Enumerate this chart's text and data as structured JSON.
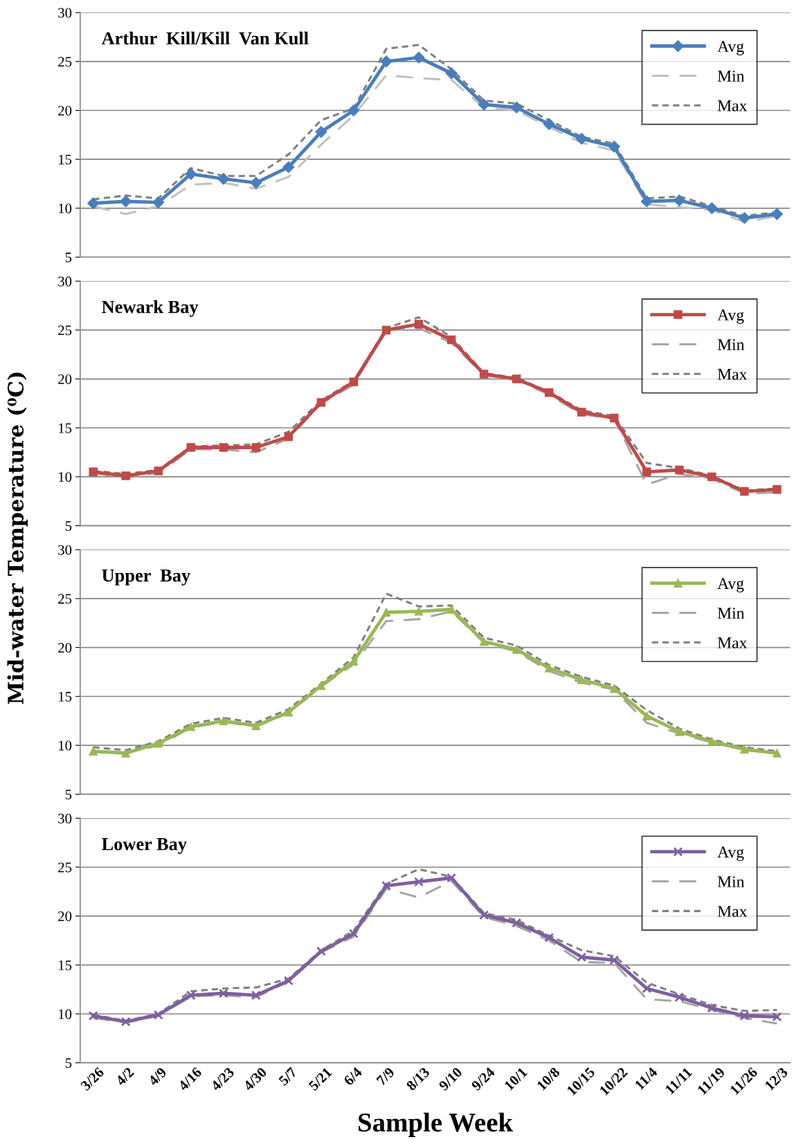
{
  "chart_data": [
    {
      "type": "line",
      "title": "Arthur  Kill/Kill  Van Kull",
      "categories": [
        null,
        null,
        null,
        null,
        null,
        null,
        null,
        null,
        null,
        null,
        null,
        null,
        null,
        null,
        null,
        null,
        null,
        null,
        null,
        null,
        null,
        null
      ],
      "ylim": [
        5,
        30
      ],
      "yticks": [
        5,
        10,
        15,
        20,
        25,
        30
      ],
      "grid": "y",
      "legend": "top right",
      "tick_labels": "y",
      "series": [
        {
          "name": "Avg",
          "color": "#4a7ebb",
          "marker": "diamond",
          "line_style": "solid",
          "values": [
            10.5,
            10.7,
            10.6,
            13.5,
            13.0,
            12.6,
            14.2,
            17.8,
            20.0,
            25.0,
            25.4,
            23.8,
            20.6,
            20.3,
            18.6,
            17.1,
            16.3,
            10.7,
            10.8,
            10.0,
            9.0,
            9.4
          ]
        },
        {
          "name": "Min",
          "color": "#c0c0c0",
          "marker": "none",
          "line_style": "dashed",
          "values": [
            10.2,
            9.4,
            10.2,
            12.4,
            12.6,
            12.0,
            13.2,
            16.5,
            19.5,
            23.6,
            23.3,
            23.1,
            20.3,
            20.0,
            18.3,
            16.7,
            15.9,
            10.4,
            10.1,
            9.8,
            8.6,
            9.2
          ]
        },
        {
          "name": "Max",
          "color": "#808080",
          "marker": "none",
          "line_style": "dotted",
          "values": [
            10.9,
            11.3,
            11.0,
            14.1,
            13.3,
            13.3,
            15.5,
            19.0,
            20.2,
            26.3,
            26.7,
            24.2,
            21.0,
            20.7,
            19.0,
            17.3,
            16.6,
            11.0,
            11.2,
            10.2,
            9.2,
            9.6
          ]
        }
      ]
    },
    {
      "type": "line",
      "title": "Newark Bay",
      "ylabel": "Mid-water Temperature (⁰C)",
      "categories": [
        null,
        null,
        null,
        null,
        null,
        null,
        null,
        null,
        null,
        null,
        null,
        null,
        null,
        null,
        null,
        null,
        null,
        null,
        null,
        null,
        null,
        null
      ],
      "ylim": [
        5,
        30
      ],
      "yticks": [
        5,
        10,
        15,
        20,
        25,
        30
      ],
      "grid": "y",
      "legend": "top right",
      "tick_labels": "y",
      "series": [
        {
          "name": "Avg",
          "color": "#be4b48",
          "marker": "square",
          "line_style": "solid",
          "values": [
            10.5,
            10.1,
            10.6,
            13.0,
            13.0,
            13.0,
            14.1,
            17.6,
            19.7,
            25.0,
            25.6,
            24.0,
            20.5,
            20.0,
            18.6,
            16.6,
            16.0,
            10.5,
            10.7,
            10.0,
            8.5,
            8.7
          ]
        },
        {
          "name": "Min",
          "color": "#a6a6a6",
          "marker": "none",
          "line_style": "dashed",
          "values": [
            10.4,
            9.9,
            10.4,
            12.8,
            12.8,
            12.5,
            13.9,
            17.5,
            19.4,
            25.0,
            25.2,
            23.7,
            20.4,
            19.9,
            18.4,
            16.4,
            15.9,
            9.2,
            10.3,
            9.8,
            8.3,
            8.4
          ]
        },
        {
          "name": "Max",
          "color": "#808080",
          "marker": "none",
          "line_style": "dotted",
          "values": [
            10.6,
            10.3,
            10.7,
            13.1,
            13.2,
            13.3,
            14.6,
            17.8,
            19.8,
            25.2,
            26.3,
            24.3,
            20.6,
            20.1,
            18.7,
            16.8,
            16.2,
            11.4,
            10.9,
            10.1,
            8.6,
            8.8
          ]
        }
      ]
    },
    {
      "type": "line",
      "title": "Upper  Bay",
      "categories": [
        null,
        null,
        null,
        null,
        null,
        null,
        null,
        null,
        null,
        null,
        null,
        null,
        null,
        null,
        null,
        null,
        null,
        null,
        null,
        null,
        null,
        null
      ],
      "ylim": [
        5,
        30
      ],
      "yticks": [
        5,
        10,
        15,
        20,
        25,
        30
      ],
      "grid": "y",
      "legend": "top right",
      "tick_labels": "y",
      "series": [
        {
          "name": "Avg",
          "color": "#98b954",
          "marker": "triangle",
          "line_style": "solid",
          "values": [
            9.4,
            9.2,
            10.2,
            11.9,
            12.5,
            12.0,
            13.4,
            16.1,
            18.6,
            23.6,
            23.7,
            23.9,
            20.6,
            19.8,
            17.9,
            16.7,
            15.8,
            13.0,
            11.4,
            10.4,
            9.6,
            9.2
          ]
        },
        {
          "name": "Min",
          "color": "#a6a6a6",
          "marker": "none",
          "line_style": "dashed",
          "values": [
            9.3,
            9.2,
            10.0,
            11.8,
            12.4,
            11.9,
            13.3,
            16.0,
            18.3,
            22.7,
            22.9,
            23.7,
            20.5,
            19.6,
            17.6,
            16.4,
            15.7,
            12.3,
            11.2,
            10.3,
            9.5,
            9.2
          ]
        },
        {
          "name": "Max",
          "color": "#808080",
          "marker": "none",
          "line_style": "dotted",
          "values": [
            9.8,
            9.5,
            10.4,
            12.2,
            12.8,
            12.3,
            13.7,
            16.3,
            19.0,
            25.5,
            24.2,
            24.3,
            21.0,
            20.2,
            18.2,
            17.0,
            16.1,
            13.6,
            11.7,
            10.6,
            9.8,
            9.4
          ]
        }
      ]
    },
    {
      "type": "line",
      "title": "Lower Bay",
      "xlabel": "Sample Week",
      "categories": [
        "3/26",
        "4/2",
        "4/9",
        "4/16",
        "4/23",
        "4/30",
        "5/7",
        "5/21",
        "6/4",
        "7/9",
        "8/13",
        "9/10",
        "9/24",
        "10/1",
        "10/8",
        "10/15",
        "10/22",
        "11/4",
        "11/11",
        "11/19",
        "11/26",
        "12/3"
      ],
      "ylim": [
        5,
        30
      ],
      "yticks": [
        5,
        10,
        15,
        20,
        25,
        30
      ],
      "grid": "y",
      "legend": "top right",
      "series": [
        {
          "name": "Avg",
          "color": "#7d60a0",
          "marker": "cross",
          "line_style": "solid",
          "values": [
            9.8,
            9.2,
            9.9,
            11.9,
            12.1,
            11.9,
            13.4,
            16.4,
            18.2,
            23.1,
            23.5,
            23.9,
            20.1,
            19.3,
            17.8,
            15.8,
            15.5,
            12.6,
            11.7,
            10.6,
            9.8,
            9.7
          ]
        },
        {
          "name": "Min",
          "color": "#a6a6a6",
          "marker": "none",
          "line_style": "dashed",
          "values": [
            9.6,
            9.1,
            9.8,
            11.8,
            11.9,
            11.7,
            13.3,
            16.3,
            17.9,
            22.8,
            21.9,
            23.6,
            19.9,
            19.0,
            17.5,
            15.3,
            15.2,
            11.5,
            11.3,
            10.4,
            9.6,
            9.0
          ]
        },
        {
          "name": "Max",
          "color": "#808080",
          "marker": "none",
          "line_style": "dotted",
          "values": [
            9.9,
            9.3,
            10.0,
            12.3,
            12.6,
            12.7,
            13.6,
            16.5,
            18.5,
            23.3,
            24.8,
            24.0,
            20.3,
            19.6,
            18.0,
            16.5,
            15.9,
            13.2,
            12.0,
            10.9,
            10.3,
            10.4
          ]
        }
      ]
    }
  ]
}
